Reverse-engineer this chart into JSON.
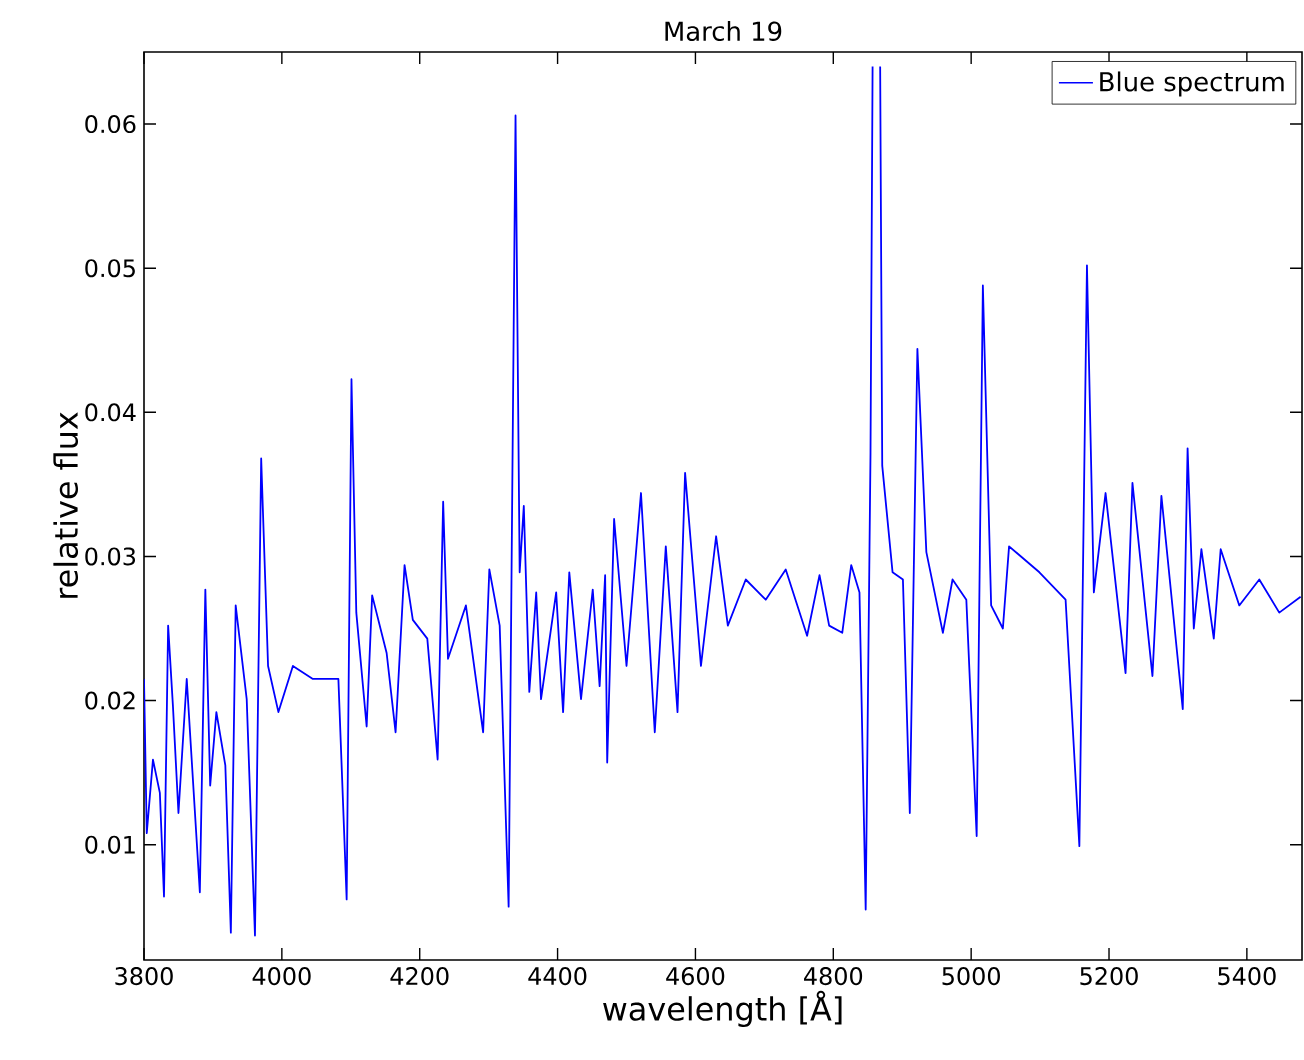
{
  "chart_data": {
    "type": "line",
    "title": "March 19",
    "xlabel": "wavelength [Å]",
    "ylabel": "relative flux",
    "xlim": [
      3800,
      5480
    ],
    "ylim": [
      0.002,
      0.065
    ],
    "xticks": [
      3800,
      4000,
      4200,
      4400,
      4600,
      4800,
      5000,
      5200,
      5400
    ],
    "yticks": [
      0.01,
      0.02,
      0.03,
      0.04,
      0.05,
      0.06
    ],
    "legend": "top right",
    "series": [
      {
        "name": "Blue spectrum",
        "color": "#0000ff",
        "x": [
          3800,
          3804,
          3813,
          3823,
          3829,
          3835,
          3842,
          3850,
          3862,
          3881,
          3889,
          3896,
          3905,
          3918,
          3926,
          3933,
          3949,
          3961,
          3970,
          3980,
          3995,
          4016,
          4045,
          4082,
          4094,
          4101,
          4108,
          4123,
          4131,
          4152,
          4165,
          4178,
          4190,
          4211,
          4226,
          4234,
          4241,
          4267,
          4292,
          4301,
          4316,
          4329,
          4339,
          4345,
          4351,
          4359,
          4369,
          4376,
          4398,
          4408,
          4417,
          4434,
          4451,
          4461,
          4469,
          4472,
          4482,
          4500,
          4521,
          4541,
          4557,
          4574,
          4585,
          4608,
          4630,
          4647,
          4673,
          4702,
          4731,
          4762,
          4780,
          4794,
          4813,
          4826,
          4838,
          4847,
          4854,
          4857,
          4859,
          4865,
          4868,
          4871,
          4886,
          4901,
          4911,
          4922,
          4935,
          4959,
          4973,
          4993,
          5008,
          5017,
          5029,
          5046,
          5055,
          5099,
          5137,
          5157,
          5168,
          5178,
          5195,
          5224,
          5234,
          5263,
          5276,
          5307,
          5314,
          5323,
          5334,
          5352,
          5362,
          5389,
          5418,
          5447,
          5478
        ],
        "values": [
          0.0215,
          0.0108,
          0.0159,
          0.0136,
          0.0064,
          0.0252,
          0.0196,
          0.0122,
          0.0215,
          0.0067,
          0.0277,
          0.0141,
          0.0192,
          0.0155,
          0.0039,
          0.0266,
          0.0201,
          0.0037,
          0.0368,
          0.0224,
          0.0192,
          0.0224,
          0.0215,
          0.0215,
          0.0062,
          0.0423,
          0.0261,
          0.0182,
          0.0273,
          0.0233,
          0.0178,
          0.0294,
          0.0256,
          0.0243,
          0.0159,
          0.0338,
          0.0229,
          0.0266,
          0.0178,
          0.0291,
          0.0252,
          0.0057,
          0.0606,
          0.0289,
          0.0335,
          0.0206,
          0.0275,
          0.0201,
          0.0275,
          0.0192,
          0.0289,
          0.0201,
          0.0277,
          0.021,
          0.0287,
          0.0157,
          0.0326,
          0.0224,
          0.0344,
          0.0178,
          0.0307,
          0.0192,
          0.0358,
          0.0224,
          0.0314,
          0.0252,
          0.0284,
          0.027,
          0.0291,
          0.0245,
          0.0287,
          0.0252,
          0.0247,
          0.0294,
          0.0275,
          0.0055,
          0.0372,
          0.064,
          null,
          null,
          0.064,
          0.0363,
          0.0289,
          0.0284,
          0.0122,
          0.0444,
          0.0303,
          0.0247,
          0.0284,
          0.027,
          0.0106,
          0.0488,
          0.0266,
          0.025,
          0.0307,
          0.0289,
          0.027,
          0.0099,
          0.0502,
          0.0275,
          0.0344,
          0.0219,
          0.0351,
          0.0217,
          0.0342,
          0.0194,
          0.0375,
          0.025,
          0.0305,
          0.0243,
          0.0305,
          0.0266,
          0.0284,
          0.0261,
          0.0272
        ]
      }
    ]
  }
}
